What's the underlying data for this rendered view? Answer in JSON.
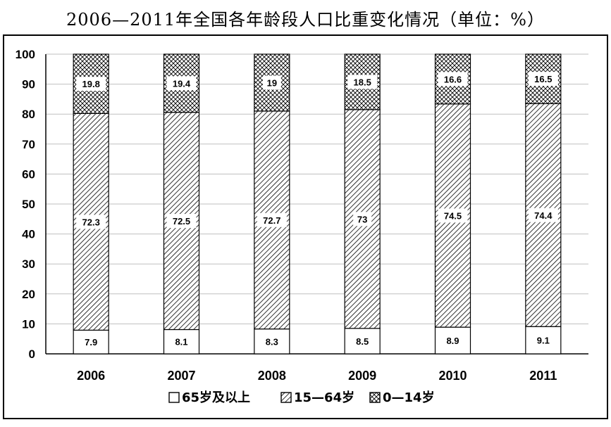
{
  "title": "2006—2011年全国各年龄段人口比重变化情况（单位：%）",
  "chart_data": {
    "type": "bar",
    "stacked": true,
    "title": "2006—2011年全国各年龄段人口比重变化情况（单位：%）",
    "categories": [
      "2006",
      "2007",
      "2008",
      "2009",
      "2010",
      "2011"
    ],
    "series": [
      {
        "name": "65岁及以上",
        "values": [
          7.9,
          8.1,
          8.3,
          8.5,
          8.9,
          9.1
        ],
        "pattern": "solid-white"
      },
      {
        "name": "15—64岁",
        "values": [
          72.3,
          72.5,
          72.7,
          73,
          74.5,
          74.4
        ],
        "pattern": "diagonal-hatch"
      },
      {
        "name": "0—14岁",
        "values": [
          19.8,
          19.4,
          19,
          18.5,
          16.6,
          16.5
        ],
        "pattern": "crosshatch"
      }
    ],
    "ylim": [
      0,
      100
    ],
    "yticks": [
      0,
      10,
      20,
      30,
      40,
      50,
      60,
      70,
      80,
      90,
      100
    ],
    "grid": true,
    "legend": "bottom",
    "colors": {
      "line": "#000000",
      "grid": "#bfbfbf",
      "fill": "#ffffff"
    }
  }
}
